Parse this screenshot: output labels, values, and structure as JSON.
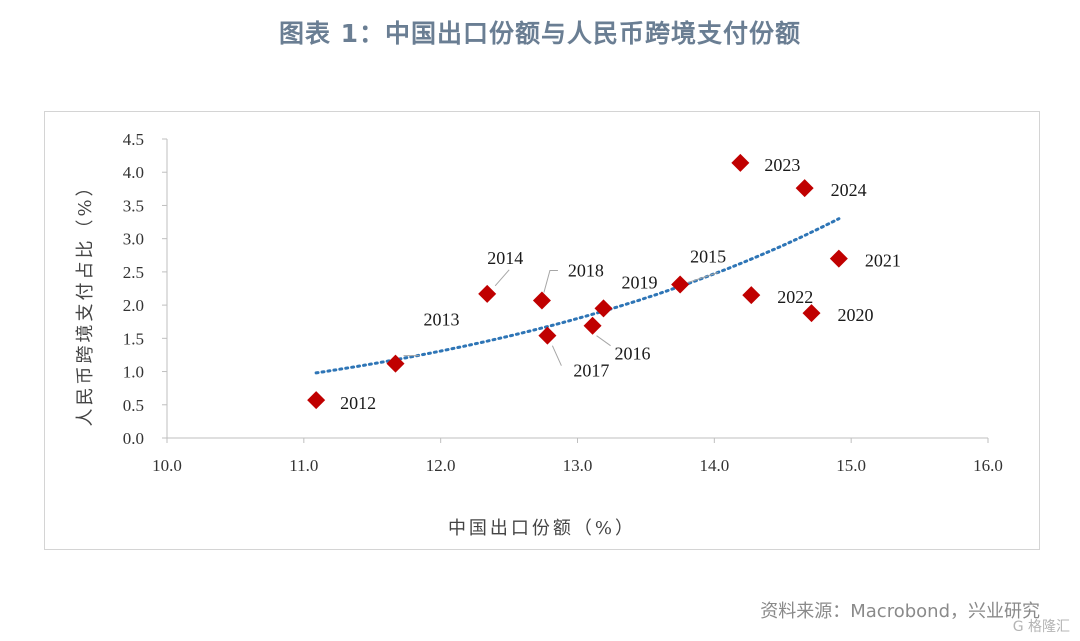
{
  "figure": {
    "title": "图表 1：中国出口份额与人民币跨境支付份额",
    "source": "资料来源：Macrobond，兴业研究",
    "watermark": "G 格隆汇"
  },
  "chart_data": {
    "type": "scatter",
    "title": "",
    "xlabel": "中国出口份额（%）",
    "ylabel": "人民币跨境支付占比（%）",
    "xlim": [
      10.0,
      16.0
    ],
    "ylim": [
      0.0,
      4.5
    ],
    "x_ticks": [
      "10.0",
      "11.0",
      "12.0",
      "13.0",
      "14.0",
      "15.0",
      "16.0"
    ],
    "y_ticks": [
      "0.0",
      "0.5",
      "1.0",
      "1.5",
      "2.0",
      "2.5",
      "3.0",
      "3.5",
      "4.0",
      "4.5"
    ],
    "grid": false,
    "marker_color": "#c00000",
    "trend_color": "#2e75b6",
    "points": [
      {
        "label": "2012",
        "x": 11.09,
        "y": 0.57
      },
      {
        "label": "2013",
        "x": 11.67,
        "y": 1.12
      },
      {
        "label": "2014",
        "x": 12.34,
        "y": 2.17
      },
      {
        "label": "2015",
        "x": 13.75,
        "y": 2.31
      },
      {
        "label": "2016",
        "x": 13.11,
        "y": 1.69
      },
      {
        "label": "2017",
        "x": 12.78,
        "y": 1.54
      },
      {
        "label": "2018",
        "x": 12.74,
        "y": 2.07
      },
      {
        "label": "2019",
        "x": 13.19,
        "y": 1.95
      },
      {
        "label": "2020",
        "x": 14.71,
        "y": 1.88
      },
      {
        "label": "2021",
        "x": 14.91,
        "y": 2.7
      },
      {
        "label": "2022",
        "x": 14.27,
        "y": 2.15
      },
      {
        "label": "2023",
        "x": 14.19,
        "y": 4.14
      },
      {
        "label": "2024",
        "x": 14.66,
        "y": 3.76
      }
    ],
    "trendline": {
      "type": "exponential",
      "x_range": [
        11.09,
        14.91
      ],
      "a": 0.0288,
      "b": 0.318
    }
  }
}
